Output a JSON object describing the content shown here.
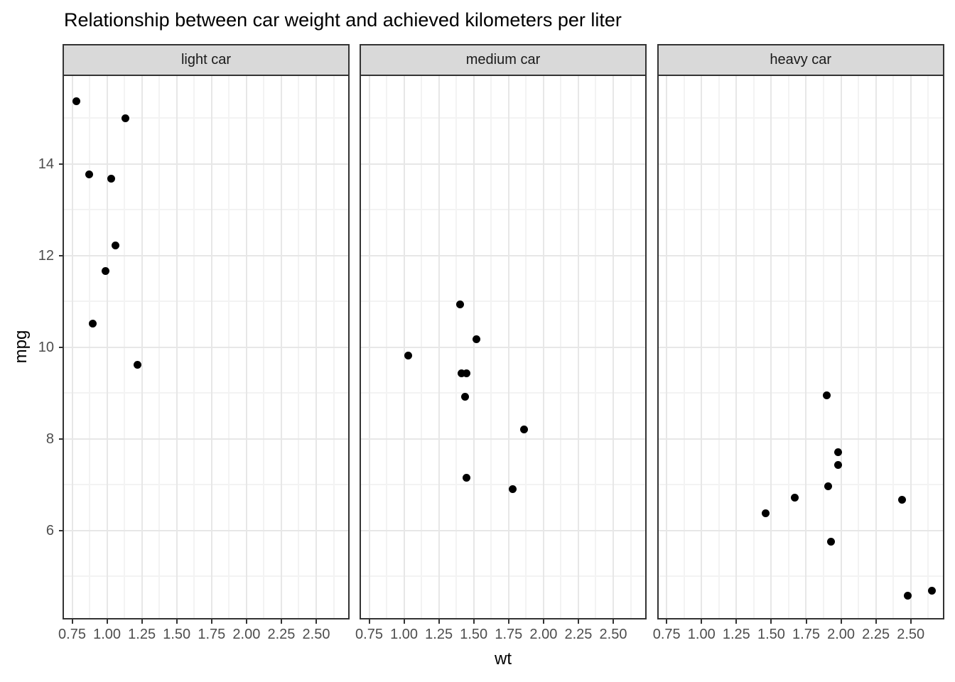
{
  "title": "Relationship between car weight and achieved kilometers per liter",
  "colors": {
    "background": "#ffffff",
    "strip_fill": "#d9d9d9",
    "panel_border": "#333333",
    "grid_major": "#e7e7e7",
    "grid_minor": "#f3f3f3",
    "tick_mark": "#333333",
    "tick_label": "#4d4d4d",
    "point": "#000000",
    "text": "#000000"
  },
  "chart_data": {
    "type": "scatter",
    "title": "Relationship between car weight and achieved kilometers per liter",
    "xlabel": "wt",
    "ylabel": "mpg",
    "legend": "none",
    "grid": true,
    "xlim": [
      0.694,
      2.729
    ],
    "ylim": [
      4.09,
      15.92
    ],
    "x_ticks": [
      0.75,
      1.0,
      1.25,
      1.5,
      1.75,
      2.0,
      2.25,
      2.5
    ],
    "x_tick_labels": [
      "0.75",
      "1.00",
      "1.25",
      "1.50",
      "1.75",
      "2.00",
      "2.25",
      "2.50"
    ],
    "y_ticks": [
      6,
      8,
      10,
      12,
      14
    ],
    "y_tick_labels": [
      "6",
      "8",
      "10",
      "12",
      "14"
    ],
    "x_minor_gridlines": [
      0.875,
      1.125,
      1.375,
      1.625,
      1.875,
      2.125,
      2.375,
      2.625
    ],
    "y_minor_gridlines": [
      5,
      7,
      9,
      11,
      13,
      15
    ],
    "facets": [
      {
        "label": "light car",
        "points": [
          {
            "wt": 0.78,
            "mpg": 15.36
          },
          {
            "wt": 1.13,
            "mpg": 14.99
          },
          {
            "wt": 0.87,
            "mpg": 13.76
          },
          {
            "wt": 1.03,
            "mpg": 13.68
          },
          {
            "wt": 1.06,
            "mpg": 12.22
          },
          {
            "wt": 0.99,
            "mpg": 11.66
          },
          {
            "wt": 0.9,
            "mpg": 10.51
          },
          {
            "wt": 1.22,
            "mpg": 9.62
          }
        ]
      },
      {
        "label": "medium car",
        "points": [
          {
            "wt": 1.4,
            "mpg": 10.93
          },
          {
            "wt": 1.52,
            "mpg": 10.17
          },
          {
            "wt": 1.03,
            "mpg": 9.82
          },
          {
            "wt": 1.41,
            "mpg": 9.43
          },
          {
            "wt": 1.45,
            "mpg": 9.43
          },
          {
            "wt": 1.44,
            "mpg": 8.91
          },
          {
            "wt": 1.86,
            "mpg": 8.2
          },
          {
            "wt": 1.45,
            "mpg": 7.15
          },
          {
            "wt": 1.78,
            "mpg": 6.9
          }
        ]
      },
      {
        "label": "heavy car",
        "points": [
          {
            "wt": 1.9,
            "mpg": 8.94
          },
          {
            "wt": 1.98,
            "mpg": 7.7
          },
          {
            "wt": 1.98,
            "mpg": 7.42
          },
          {
            "wt": 1.91,
            "mpg": 6.96
          },
          {
            "wt": 1.67,
            "mpg": 6.72
          },
          {
            "wt": 2.44,
            "mpg": 6.66
          },
          {
            "wt": 1.46,
            "mpg": 6.38
          },
          {
            "wt": 1.93,
            "mpg": 5.75
          },
          {
            "wt": 2.65,
            "mpg": 4.68
          },
          {
            "wt": 2.48,
            "mpg": 4.57
          }
        ]
      }
    ]
  }
}
